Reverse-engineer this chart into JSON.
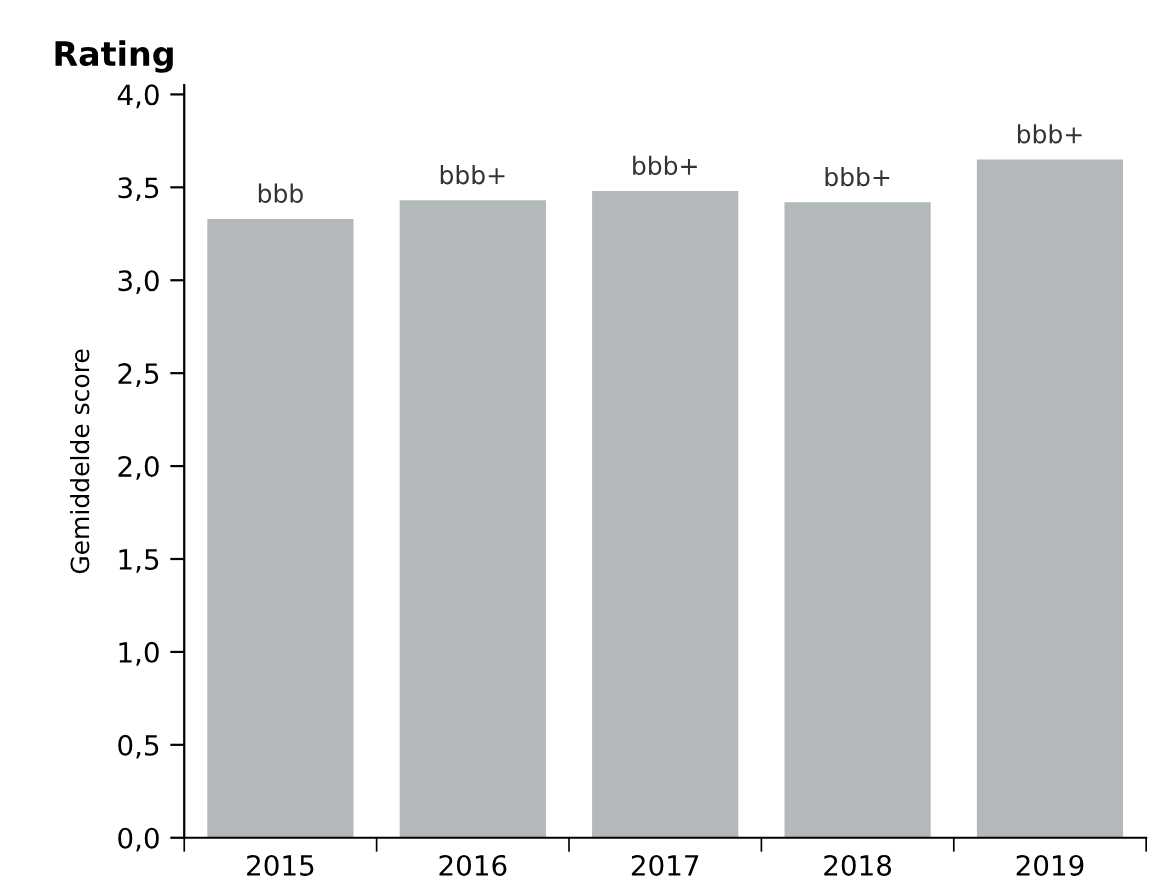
{
  "chart_data": {
    "type": "bar",
    "title": "Rating",
    "ylabel": "Gemiddelde score",
    "categories": [
      "2015",
      "2016",
      "2017",
      "2018",
      "2019"
    ],
    "values": [
      3.33,
      3.43,
      3.48,
      3.42,
      3.65
    ],
    "value_labels": [
      "bbb",
      "bbb+",
      "bbb+",
      "bbb+",
      "bbb+"
    ],
    "color": "#b3b8ba",
    "ylim": [
      0,
      4.05
    ],
    "yticks": [
      {
        "value": 0,
        "label": "0,0"
      },
      {
        "value": 0.5,
        "label": "0,5"
      },
      {
        "value": 1,
        "label": "1,0"
      },
      {
        "value": 1.5,
        "label": "1,5"
      },
      {
        "value": 2,
        "label": "2,0"
      },
      {
        "value": 2.5,
        "label": "2,5"
      },
      {
        "value": 3,
        "label": "3,0"
      },
      {
        "value": 3.5,
        "label": "3,5"
      },
      {
        "value": 4,
        "label": "4,0"
      }
    ],
    "grid": false,
    "legend": false
  }
}
